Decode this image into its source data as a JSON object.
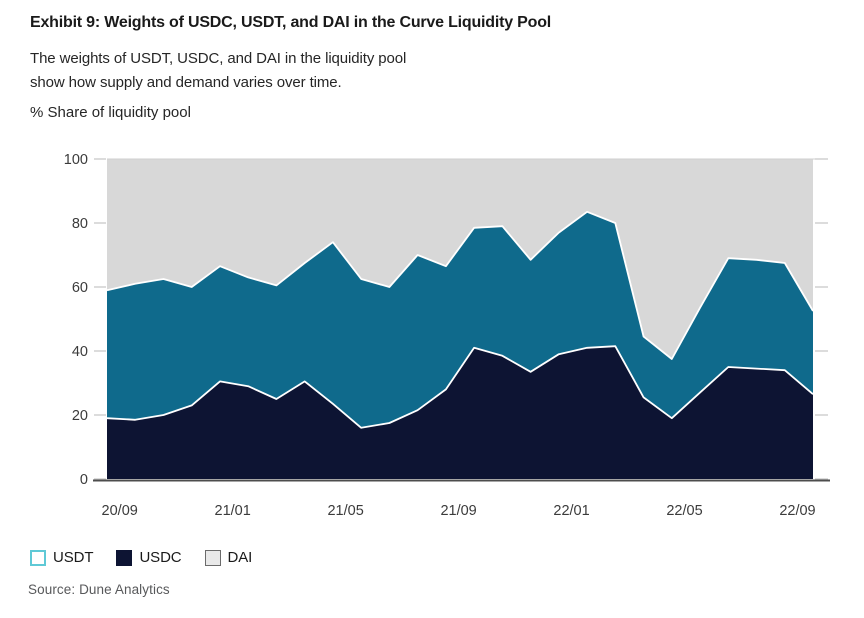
{
  "header": {
    "title": "Exhibit 9: Weights of USDC, USDT, and DAI in the Curve Liquidity Pool",
    "subtitle_line1": "The weights of USDT, USDC, and DAI in the liquidity pool",
    "subtitle_line2": "show how supply and demand varies over time.",
    "axis_note": "% Share of liquidity pool"
  },
  "chart_data": {
    "type": "area",
    "stacked": true,
    "title": "Exhibit 9: Weights of USDC, USDT, and DAI in the Curve Liquidity Pool",
    "ylabel": "% Share of liquidity pool",
    "xlabel": "",
    "ylim": [
      0,
      100
    ],
    "y_ticks": [
      0,
      20,
      40,
      60,
      80,
      100
    ],
    "x_tick_labels": [
      "20/09",
      "21/01",
      "21/05",
      "21/09",
      "22/01",
      "22/05",
      "22/09"
    ],
    "x_tick_point_indices": [
      0,
      4,
      8,
      12,
      16,
      20,
      24
    ],
    "x_tick_index_offset": 0.45,
    "n_points": 26,
    "x_note": "monthly points from 2020-09 to 2022-10, labels every 4 months",
    "grid": false,
    "legend_position": "bottom-left",
    "series": [
      {
        "name": "USDC",
        "color": "#0d1433",
        "values": [
          19,
          18.5,
          20,
          23,
          30.5,
          29,
          25,
          30.5,
          23.5,
          16,
          17.5,
          21.5,
          28,
          41,
          38.5,
          33.5,
          39,
          41,
          41.5,
          25.5,
          19,
          27,
          35,
          34.5,
          34,
          26.5
        ]
      },
      {
        "name": "USDT",
        "color": "#0f6a8c",
        "values": [
          40,
          42.5,
          42.5,
          37,
          36,
          34,
          35.5,
          37,
          50.5,
          46.5,
          42.5,
          48.5,
          38.5,
          37.5,
          40.5,
          35,
          38,
          42.5,
          38.5,
          19,
          18.5,
          26.5,
          34,
          34,
          33.5,
          26
        ]
      },
      {
        "name": "DAI",
        "color": "#d8d8d8",
        "values": [
          41,
          39,
          37.5,
          40,
          33.5,
          37,
          39.5,
          32.5,
          26,
          37.5,
          40,
          30,
          33.5,
          21.5,
          21,
          31.5,
          23,
          16.5,
          20,
          55.5,
          62.5,
          46.5,
          31,
          31.5,
          32.5,
          47.5
        ]
      }
    ],
    "colors": {
      "boundary_stroke": "#ffffff",
      "axis_line": "#4d4d4d",
      "tick_mark": "#c9c9c9",
      "tick_label": "#3b3b3b",
      "plot_top_border": "#cfcfcf"
    }
  },
  "legend": {
    "items": [
      {
        "label": "USDT",
        "fill": "#ffffff",
        "border": "#5fc9d6",
        "border_width": 2
      },
      {
        "label": "USDC",
        "fill": "#0d1433",
        "border": "#0d1433",
        "border_width": 1
      },
      {
        "label": "DAI",
        "fill": "#e9e9e9",
        "border": "#6b6b6b",
        "border_width": 1
      }
    ]
  },
  "source": {
    "text": "Source: Dune Analytics"
  }
}
